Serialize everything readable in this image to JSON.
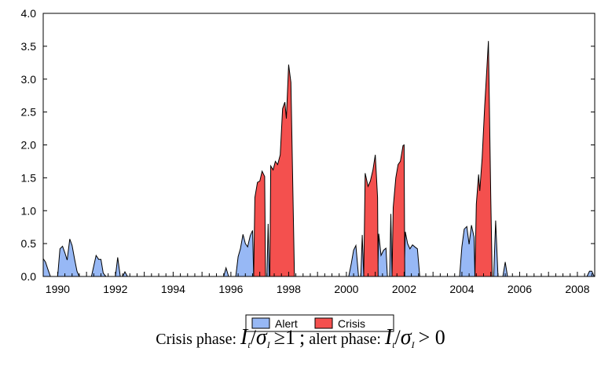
{
  "chart_data": {
    "type": "area",
    "title": "",
    "xlabel": "",
    "ylabel": "",
    "xlim": [
      1989.5,
      2008.6
    ],
    "ylim": [
      0,
      4
    ],
    "y_ticks": [
      "0.0",
      "0.5",
      "1.0",
      "1.5",
      "2.0",
      "2.5",
      "3.0",
      "3.5",
      "4.0"
    ],
    "x_ticks": [
      "1990",
      "1992",
      "1994",
      "1996",
      "1998",
      "2000",
      "2002",
      "2004",
      "2006",
      "2008"
    ],
    "grid": false,
    "legend": {
      "placement": "bottom-center",
      "entries": [
        "Alert",
        "Crisis"
      ]
    },
    "colors": {
      "Alert": "#97b8f5",
      "Crisis": "#f4504e",
      "outline": "#000000"
    },
    "series": [
      {
        "name": "Alert",
        "segments": [
          [
            [
              1989.5,
              0.27
            ],
            [
              1989.58,
              0.22
            ],
            [
              1989.67,
              0.1
            ],
            [
              1989.75,
              0.0
            ]
          ],
          [
            [
              1990.0,
              0.0
            ],
            [
              1990.08,
              0.42
            ],
            [
              1990.17,
              0.46
            ],
            [
              1990.25,
              0.36
            ],
            [
              1990.33,
              0.25
            ],
            [
              1990.42,
              0.57
            ],
            [
              1990.5,
              0.47
            ],
            [
              1990.58,
              0.28
            ],
            [
              1990.67,
              0.08
            ],
            [
              1990.75,
              0.0
            ]
          ],
          [
            [
              1991.17,
              0.0
            ],
            [
              1991.33,
              0.32
            ],
            [
              1991.42,
              0.26
            ],
            [
              1991.5,
              0.26
            ],
            [
              1991.58,
              0.05
            ],
            [
              1991.67,
              0.0
            ]
          ],
          [
            [
              1992.0,
              0.0
            ],
            [
              1992.08,
              0.29
            ],
            [
              1992.17,
              0.0
            ]
          ],
          [
            [
              1992.25,
              0.0
            ],
            [
              1992.33,
              0.07
            ],
            [
              1992.42,
              0.0
            ]
          ],
          [
            [
              1995.75,
              0.0
            ],
            [
              1995.83,
              0.13
            ],
            [
              1995.92,
              0.0
            ]
          ],
          [
            [
              1996.17,
              0.0
            ],
            [
              1996.25,
              0.3
            ],
            [
              1996.33,
              0.42
            ],
            [
              1996.42,
              0.64
            ],
            [
              1996.5,
              0.5
            ],
            [
              1996.58,
              0.45
            ],
            [
              1996.67,
              0.62
            ],
            [
              1996.75,
              0.7
            ],
            [
              1996.79,
              0.0
            ]
          ],
          [
            [
              1997.25,
              0.0
            ],
            [
              1997.29,
              0.8
            ],
            [
              1997.33,
              0.0
            ]
          ],
          [
            [
              2000.08,
              0.0
            ],
            [
              2000.17,
              0.2
            ],
            [
              2000.25,
              0.4
            ],
            [
              2000.33,
              0.47
            ],
            [
              2000.42,
              0.0
            ]
          ],
          [
            [
              2000.5,
              0.0
            ],
            [
              2000.55,
              0.63
            ],
            [
              2000.6,
              0.0
            ]
          ],
          [
            [
              2001.08,
              0.0
            ],
            [
              2001.12,
              0.65
            ],
            [
              2001.2,
              0.32
            ],
            [
              2001.29,
              0.4
            ],
            [
              2001.37,
              0.43
            ],
            [
              2001.42,
              0.0
            ]
          ],
          [
            [
              2001.5,
              0.0
            ],
            [
              2001.54,
              0.95
            ],
            [
              2001.58,
              0.0
            ]
          ],
          [
            [
              2002.0,
              0.0
            ],
            [
              2002.04,
              0.68
            ],
            [
              2002.12,
              0.5
            ],
            [
              2002.2,
              0.42
            ],
            [
              2002.29,
              0.48
            ],
            [
              2002.37,
              0.45
            ],
            [
              2002.46,
              0.42
            ],
            [
              2002.54,
              0.0
            ]
          ],
          [
            [
              2003.92,
              0.0
            ],
            [
              2004.0,
              0.45
            ],
            [
              2004.08,
              0.72
            ],
            [
              2004.17,
              0.76
            ],
            [
              2004.25,
              0.49
            ],
            [
              2004.33,
              0.78
            ],
            [
              2004.42,
              0.6
            ],
            [
              2004.45,
              0.0
            ]
          ],
          [
            [
              2005.1,
              0.0
            ],
            [
              2005.17,
              0.85
            ],
            [
              2005.25,
              0.0
            ]
          ],
          [
            [
              2005.42,
              0.0
            ],
            [
              2005.5,
              0.22
            ],
            [
              2005.58,
              0.0
            ]
          ],
          [
            [
              2008.33,
              0.0
            ],
            [
              2008.42,
              0.08
            ],
            [
              2008.5,
              0.08
            ],
            [
              2008.58,
              0.0
            ]
          ]
        ]
      },
      {
        "name": "Crisis",
        "segments": [
          [
            [
              1996.79,
              0.0
            ],
            [
              1996.83,
              1.2
            ],
            [
              1996.92,
              1.43
            ],
            [
              1997.0,
              1.45
            ],
            [
              1997.08,
              1.6
            ],
            [
              1997.17,
              1.52
            ],
            [
              1997.2,
              0.0
            ]
          ],
          [
            [
              1997.35,
              0.0
            ],
            [
              1997.38,
              1.68
            ],
            [
              1997.46,
              1.62
            ],
            [
              1997.54,
              1.75
            ],
            [
              1997.62,
              1.7
            ],
            [
              1997.71,
              1.85
            ],
            [
              1997.79,
              2.55
            ],
            [
              1997.87,
              2.65
            ],
            [
              1997.92,
              2.4
            ],
            [
              1998.0,
              3.22
            ],
            [
              1998.08,
              2.95
            ],
            [
              1998.2,
              0.0
            ]
          ],
          [
            [
              2000.6,
              0.0
            ],
            [
              2000.65,
              1.57
            ],
            [
              2000.75,
              1.37
            ],
            [
              2000.83,
              1.45
            ],
            [
              2000.92,
              1.62
            ],
            [
              2001.0,
              1.85
            ],
            [
              2001.08,
              1.2
            ],
            [
              2001.1,
              0.0
            ]
          ],
          [
            [
              2001.58,
              0.0
            ],
            [
              2001.62,
              1.05
            ],
            [
              2001.71,
              1.5
            ],
            [
              2001.79,
              1.7
            ],
            [
              2001.87,
              1.75
            ],
            [
              2001.96,
              1.99
            ],
            [
              2002.0,
              2.0
            ],
            [
              2002.02,
              0.0
            ]
          ],
          [
            [
              2004.45,
              0.0
            ],
            [
              2004.5,
              1.1
            ],
            [
              2004.58,
              1.55
            ],
            [
              2004.62,
              1.3
            ],
            [
              2004.7,
              1.8
            ],
            [
              2004.79,
              2.6
            ],
            [
              2004.87,
              3.2
            ],
            [
              2004.92,
              3.58
            ],
            [
              2005.0,
              1.2
            ],
            [
              2005.05,
              0.0
            ]
          ]
        ]
      }
    ],
    "caption": {
      "crisis_prefix": "Crisis phase:",
      "crisis_I": "I",
      "crisis_t": "t",
      "crisis_sigma": "σ",
      "crisis_sub": "I",
      "crisis_rel": "≥1",
      "separator": ";",
      "alert_prefix": "alert phase:",
      "alert_I": "I",
      "alert_t": "t",
      "alert_sigma": "σ",
      "alert_sub": "I",
      "alert_rel": "> 0"
    }
  }
}
